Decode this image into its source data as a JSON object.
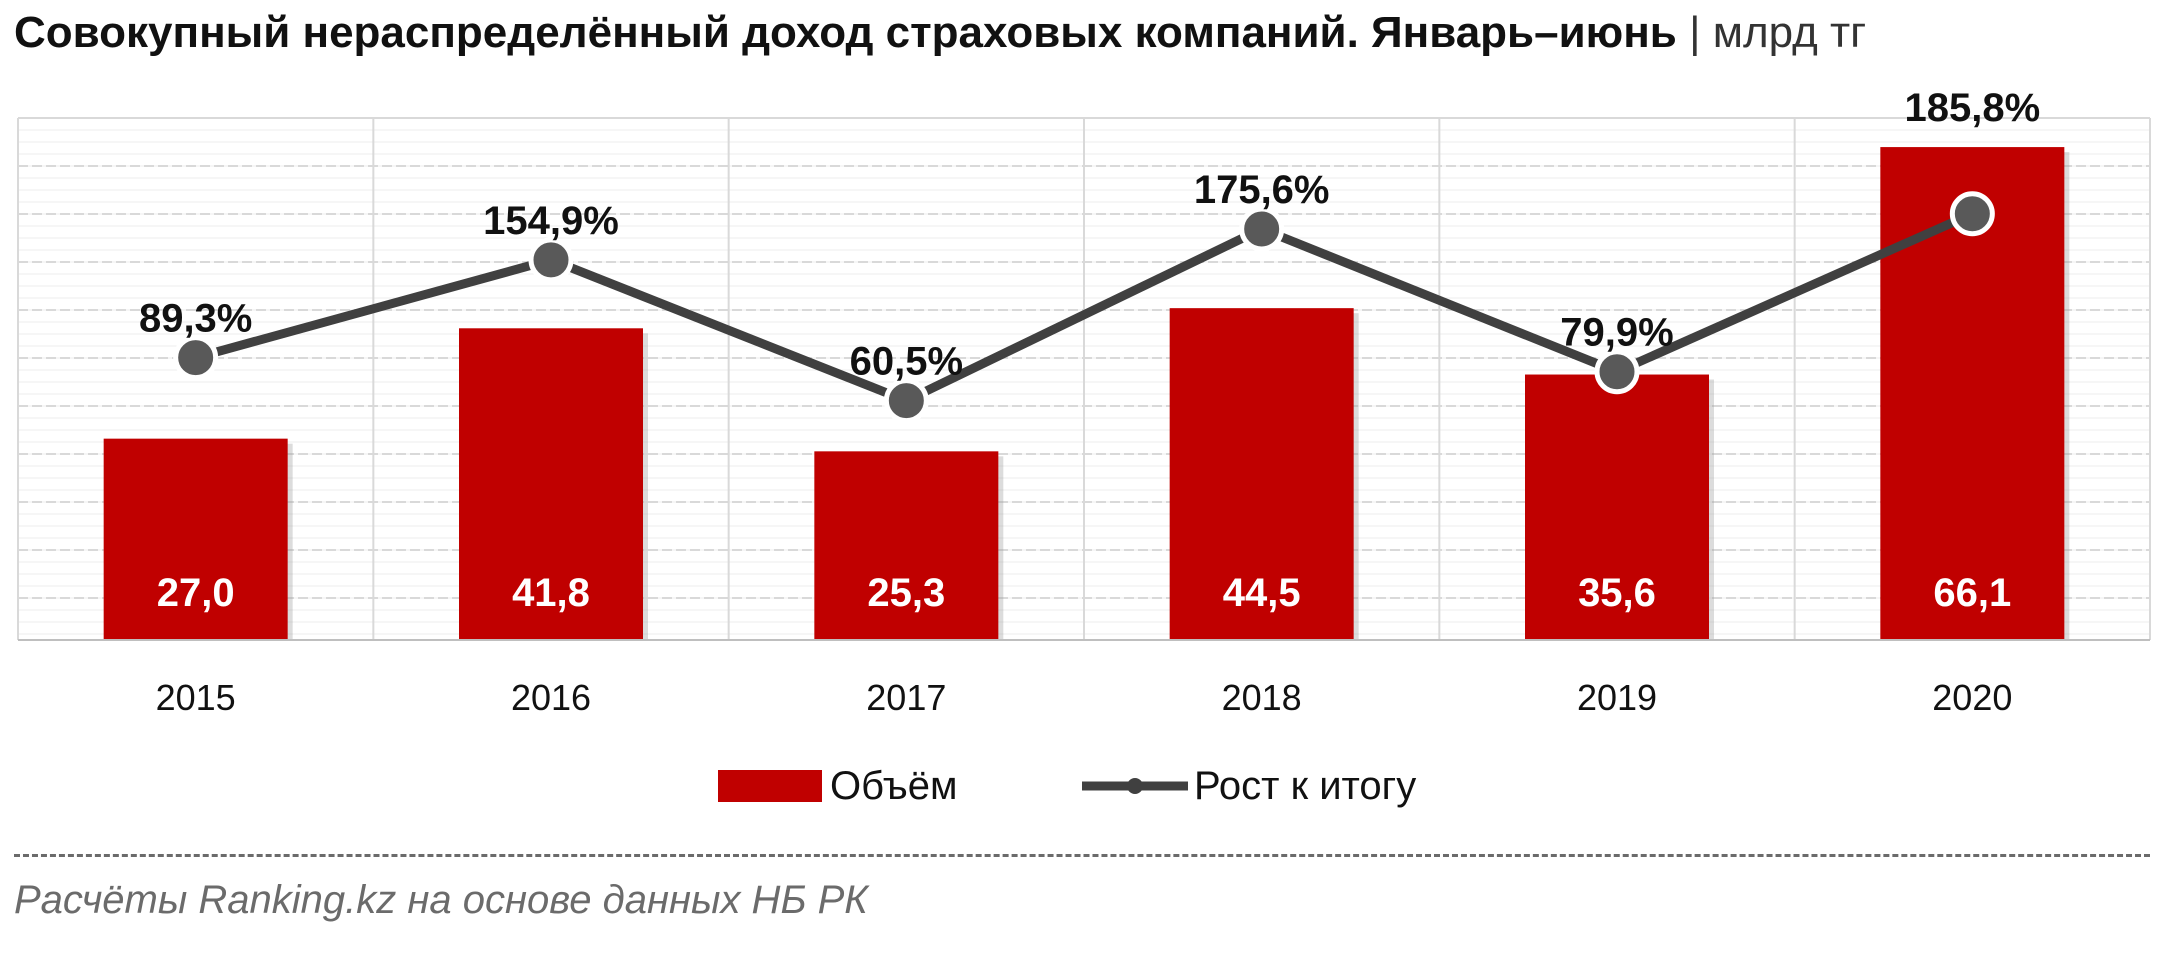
{
  "title": {
    "main": "Совокупный нераспределённый доход страховых компаний. Январь–июнь",
    "separator": "|",
    "unit": "млрд тг"
  },
  "source": "Расчёты Ranking.kz на основе данных НБ РК",
  "colors": {
    "bar": "#C00000",
    "line": "#404040",
    "marker_fill": "#595959",
    "marker_stroke": "#ffffff",
    "grid": "#d9d9d9"
  },
  "chart_data": {
    "type": "bar",
    "categories": [
      "2015",
      "2016",
      "2017",
      "2018",
      "2019",
      "2020"
    ],
    "series": [
      {
        "name": "Объём",
        "type": "bar",
        "values": [
          27.0,
          41.8,
          25.3,
          44.5,
          35.6,
          66.1
        ],
        "labels": [
          "27,0",
          "41,8",
          "25,3",
          "44,5",
          "35,6",
          "66,1"
        ]
      },
      {
        "name": "Рост к итогу",
        "type": "line",
        "values": [
          89.3,
          154.9,
          60.5,
          175.6,
          79.9,
          185.8
        ],
        "labels": [
          "89,3%",
          "154,9%",
          "60,5%",
          "175,6%",
          "79,9%",
          "185,8%"
        ]
      }
    ],
    "bar_axis_range": [
      0,
      70
    ],
    "line_axis_range": [
      -100,
      250
    ],
    "grid": true,
    "legend_position": "bottom"
  }
}
